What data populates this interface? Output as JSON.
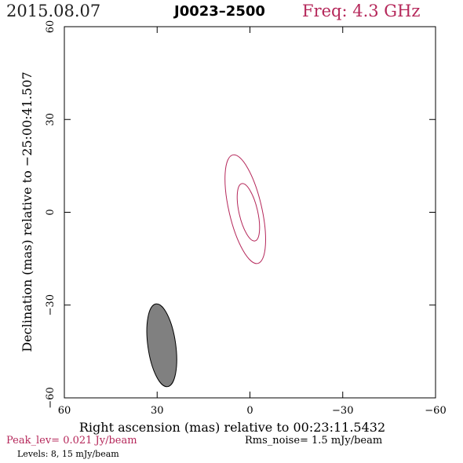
{
  "header": {
    "date": "2015.08.07",
    "source": "J0023–2500",
    "freq": "Freq: 4.3 GHz"
  },
  "footer": {
    "peak": "Peak_lev=  0.021 Jy/beam",
    "rms": "Rms_noise=  1.5 mJy/beam",
    "levels": "Levels:  8,  15 mJy/beam"
  },
  "colors": {
    "contour": "#b5275a",
    "beam_fill": "#808080",
    "frame": "#000000"
  },
  "chart_data": {
    "type": "contour",
    "xlabel": "Right ascension (mas) relative to 00:23:11.5432",
    "ylabel": "Declination (mas) relative to −25:00:41.507",
    "xlim": [
      60,
      -60
    ],
    "ylim": [
      -60,
      60
    ],
    "x_ticks": [
      60,
      30,
      0,
      -30,
      -60
    ],
    "y_ticks": [
      -60,
      -30,
      0,
      30,
      60
    ],
    "x_tick_labels": [
      "60",
      "30",
      "0",
      "−30",
      "−60"
    ],
    "y_tick_labels": [
      "−60",
      "−30",
      "0",
      "30",
      "60"
    ],
    "contour_levels_mJy": [
      8,
      15
    ],
    "contours": [
      {
        "level": 8,
        "center": [
          1.5,
          1
        ],
        "semi_major": 18,
        "semi_minor": 5.3,
        "pa_deg": -13
      },
      {
        "level": 15,
        "center": [
          0.5,
          0
        ],
        "semi_major": 9.5,
        "semi_minor": 3.0,
        "pa_deg": -13
      }
    ],
    "beam": {
      "center": [
        28.5,
        -43
      ],
      "semi_major": 13.5,
      "semi_minor": 4.5,
      "pa_deg": -8
    }
  }
}
